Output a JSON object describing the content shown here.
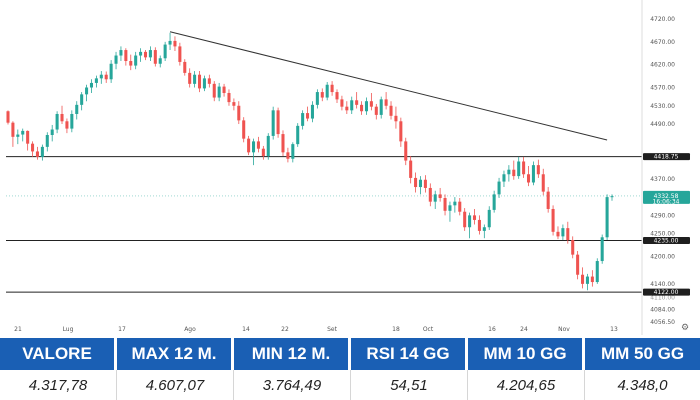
{
  "chart_data": {
    "type": "candlestick",
    "y_axis_labels": [
      "4720.00",
      "4670.00",
      "4620.00",
      "4570.00",
      "4530.00",
      "4490.00",
      "4370.00",
      "4290.00",
      "4250.00",
      "4200.00",
      "4140.00",
      "4084.00",
      "4056.50"
    ],
    "x_axis_labels": [
      "21",
      "Lug",
      "17",
      "Ago",
      "14",
      "22",
      "Set",
      "18",
      "Oct",
      "16",
      "24",
      "Nov",
      "13"
    ],
    "price_tags": [
      {
        "label": "4418.75",
        "value": 4418.75,
        "style": "dark"
      },
      {
        "label": "4332.58",
        "sub": "16:06:34",
        "value": 4332.58,
        "style": "green"
      },
      {
        "label": "4235.00",
        "value": 4235.0,
        "style": "dark"
      },
      {
        "label": "4122.00",
        "value": 4122.0,
        "style": "dark"
      }
    ],
    "hidden_tick": "4110.00",
    "horizontal_levels": [
      4418.75,
      4235.0,
      4122.0
    ],
    "current_price": 4332.58,
    "trendline": {
      "from": {
        "bar": 33,
        "value": 4692
      },
      "to": {
        "bar": 122,
        "value": 4455
      }
    },
    "candles": [
      [
        4518,
        4520,
        4489,
        4493
      ],
      [
        4493,
        4496,
        4440,
        4462
      ],
      [
        4462,
        4478,
        4446,
        4467
      ],
      [
        4467,
        4480,
        4452,
        4475
      ],
      [
        4475,
        4476,
        4432,
        4447
      ],
      [
        4447,
        4452,
        4418,
        4430
      ],
      [
        4430,
        4440,
        4412,
        4418
      ],
      [
        4418,
        4445,
        4410,
        4440
      ],
      [
        4440,
        4472,
        4430,
        4466
      ],
      [
        4466,
        4488,
        4452,
        4478
      ],
      [
        4478,
        4518,
        4470,
        4512
      ],
      [
        4512,
        4530,
        4490,
        4496
      ],
      [
        4496,
        4502,
        4470,
        4480
      ],
      [
        4480,
        4520,
        4472,
        4512
      ],
      [
        4512,
        4540,
        4500,
        4532
      ],
      [
        4532,
        4560,
        4520,
        4555
      ],
      [
        4555,
        4576,
        4540,
        4570
      ],
      [
        4570,
        4588,
        4558,
        4580
      ],
      [
        4580,
        4596,
        4570,
        4590
      ],
      [
        4590,
        4606,
        4578,
        4598
      ],
      [
        4598,
        4605,
        4580,
        4588
      ],
      [
        4588,
        4630,
        4580,
        4622
      ],
      [
        4622,
        4648,
        4610,
        4640
      ],
      [
        4640,
        4660,
        4628,
        4652
      ],
      [
        4652,
        4656,
        4618,
        4628
      ],
      [
        4628,
        4642,
        4608,
        4618
      ],
      [
        4618,
        4648,
        4610,
        4640
      ],
      [
        4640,
        4656,
        4626,
        4648
      ],
      [
        4648,
        4652,
        4630,
        4636
      ],
      [
        4636,
        4660,
        4628,
        4652
      ],
      [
        4652,
        4658,
        4616,
        4622
      ],
      [
        4622,
        4640,
        4614,
        4634
      ],
      [
        4634,
        4670,
        4628,
        4664
      ],
      [
        4664,
        4690,
        4652,
        4672
      ],
      [
        4672,
        4682,
        4650,
        4660
      ],
      [
        4660,
        4668,
        4618,
        4626
      ],
      [
        4626,
        4632,
        4596,
        4602
      ],
      [
        4602,
        4612,
        4570,
        4578
      ],
      [
        4578,
        4606,
        4570,
        4598
      ],
      [
        4598,
        4606,
        4560,
        4568
      ],
      [
        4568,
        4596,
        4562,
        4590
      ],
      [
        4590,
        4598,
        4570,
        4578
      ],
      [
        4578,
        4584,
        4540,
        4548
      ],
      [
        4548,
        4580,
        4540,
        4572
      ],
      [
        4572,
        4578,
        4550,
        4558
      ],
      [
        4558,
        4566,
        4530,
        4538
      ],
      [
        4538,
        4546,
        4520,
        4530
      ],
      [
        4530,
        4540,
        4490,
        4498
      ],
      [
        4498,
        4505,
        4450,
        4458
      ],
      [
        4458,
        4464,
        4422,
        4428
      ],
      [
        4428,
        4458,
        4400,
        4452
      ],
      [
        4452,
        4462,
        4428,
        4436
      ],
      [
        4436,
        4442,
        4412,
        4420
      ],
      [
        4420,
        4470,
        4412,
        4464
      ],
      [
        4464,
        4528,
        4456,
        4520
      ],
      [
        4520,
        4526,
        4460,
        4468
      ],
      [
        4468,
        4476,
        4420,
        4428
      ],
      [
        4428,
        4438,
        4406,
        4414
      ],
      [
        4414,
        4450,
        4406,
        4446
      ],
      [
        4446,
        4492,
        4440,
        4486
      ],
      [
        4486,
        4520,
        4478,
        4514
      ],
      [
        4514,
        4528,
        4496,
        4502
      ],
      [
        4502,
        4540,
        4494,
        4532
      ],
      [
        4532,
        4566,
        4524,
        4560
      ],
      [
        4560,
        4568,
        4540,
        4548
      ],
      [
        4548,
        4582,
        4542,
        4576
      ],
      [
        4576,
        4584,
        4552,
        4560
      ],
      [
        4560,
        4566,
        4536,
        4544
      ],
      [
        4544,
        4552,
        4520,
        4528
      ],
      [
        4528,
        4540,
        4512,
        4520
      ],
      [
        4520,
        4550,
        4512,
        4542
      ],
      [
        4542,
        4560,
        4524,
        4532
      ],
      [
        4532,
        4540,
        4510,
        4518
      ],
      [
        4518,
        4548,
        4510,
        4540
      ],
      [
        4540,
        4558,
        4520,
        4528
      ],
      [
        4528,
        4534,
        4500,
        4510
      ],
      [
        4510,
        4550,
        4502,
        4544
      ],
      [
        4544,
        4560,
        4522,
        4530
      ],
      [
        4530,
        4540,
        4500,
        4508
      ],
      [
        4508,
        4528,
        4480,
        4496
      ],
      [
        4496,
        4504,
        4440,
        4452
      ],
      [
        4452,
        4460,
        4400,
        4410
      ],
      [
        4410,
        4420,
        4360,
        4372
      ],
      [
        4372,
        4384,
        4340,
        4352
      ],
      [
        4352,
        4376,
        4336,
        4368
      ],
      [
        4368,
        4378,
        4340,
        4350
      ],
      [
        4350,
        4360,
        4310,
        4320
      ],
      [
        4320,
        4344,
        4304,
        4336
      ],
      [
        4336,
        4350,
        4320,
        4328
      ],
      [
        4328,
        4336,
        4290,
        4300
      ],
      [
        4300,
        4320,
        4276,
        4312
      ],
      [
        4312,
        4330,
        4296,
        4320
      ],
      [
        4320,
        4328,
        4290,
        4298
      ],
      [
        4298,
        4306,
        4256,
        4264
      ],
      [
        4264,
        4296,
        4240,
        4290
      ],
      [
        4290,
        4304,
        4270,
        4280
      ],
      [
        4280,
        4290,
        4248,
        4256
      ],
      [
        4256,
        4270,
        4240,
        4264
      ],
      [
        4264,
        4310,
        4258,
        4302
      ],
      [
        4302,
        4344,
        4296,
        4336
      ],
      [
        4336,
        4372,
        4328,
        4364
      ],
      [
        4364,
        4388,
        4352,
        4380
      ],
      [
        4380,
        4400,
        4364,
        4390
      ],
      [
        4390,
        4410,
        4368,
        4376
      ],
      [
        4376,
        4418,
        4370,
        4408
      ],
      [
        4408,
        4418,
        4372,
        4380
      ],
      [
        4380,
        4398,
        4354,
        4362
      ],
      [
        4362,
        4408,
        4356,
        4400
      ],
      [
        4400,
        4412,
        4372,
        4380
      ],
      [
        4380,
        4392,
        4334,
        4342
      ],
      [
        4342,
        4352,
        4296,
        4304
      ],
      [
        4304,
        4312,
        4246,
        4254
      ],
      [
        4254,
        4266,
        4238,
        4244
      ],
      [
        4244,
        4270,
        4236,
        4262
      ],
      [
        4262,
        4276,
        4228,
        4236
      ],
      [
        4236,
        4244,
        4196,
        4204
      ],
      [
        4204,
        4212,
        4150,
        4160
      ],
      [
        4160,
        4176,
        4130,
        4140
      ],
      [
        4140,
        4162,
        4126,
        4156
      ],
      [
        4156,
        4170,
        4134,
        4144
      ],
      [
        4144,
        4196,
        4140,
        4190
      ],
      [
        4190,
        4248,
        4184,
        4242
      ],
      [
        4242,
        4336,
        4236,
        4330
      ],
      [
        4330,
        4336,
        4322,
        4332
      ]
    ]
  },
  "stats": [
    {
      "label": "VALORE",
      "value": "4.317,78"
    },
    {
      "label": "MAX 12 M.",
      "value": "4.607,07"
    },
    {
      "label": "MIN 12 M.",
      "value": "3.764,49"
    },
    {
      "label": "RSI 14 GG",
      "value": "54,51"
    },
    {
      "label": "MM 10 GG",
      "value": "4.204,65"
    },
    {
      "label": "MM 50 GG",
      "value": "4.348,0"
    }
  ],
  "colors": {
    "up": "#26a69a",
    "down": "#ef5350",
    "level": "#222222",
    "trend": "#333333",
    "price": "#26a69a",
    "header": "#1a5fb4"
  },
  "icons": {
    "settings": "gear-icon"
  }
}
